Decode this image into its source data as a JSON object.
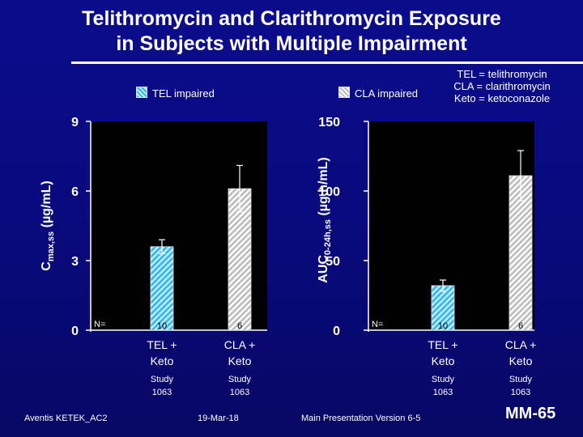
{
  "title": {
    "line1": "Telithromycin and Clarithromycin Exposure",
    "line2": "in Subjects with Multiple Impairment"
  },
  "definitions": [
    "TEL = telithromycin",
    "CLA = clarithromycin",
    "Keto = ketoconazole"
  ],
  "legend": {
    "tel": "TEL impaired",
    "cla": "CLA impaired"
  },
  "colors": {
    "background": "#0b0c8c",
    "tel_hatch": "#2fb7f0",
    "cla_hatch": "#bcbcbc"
  },
  "chart_data": [
    {
      "type": "bar",
      "ylabel_main": "C",
      "ylabel_sub": "max,ss",
      "ylabel_unit": " (µg/mL)",
      "ylim": [
        0,
        9
      ],
      "yticks": [
        0,
        3,
        6,
        9
      ],
      "n_label": "N=",
      "categories": [
        {
          "line1": "TEL +",
          "line2": "Keto",
          "study1": "Study",
          "study2": "1063"
        },
        {
          "line1": "CLA +",
          "line2": "Keto",
          "study1": "Study",
          "study2": "1063"
        }
      ],
      "series": [
        {
          "name": "TEL impaired",
          "values": [
            3.6,
            null
          ],
          "error": [
            0.3,
            null
          ],
          "n": [
            "10",
            null
          ]
        },
        {
          "name": "CLA impaired",
          "values": [
            null,
            6.1
          ],
          "error": [
            null,
            1.0
          ],
          "n": [
            null,
            "6"
          ]
        }
      ]
    },
    {
      "type": "bar",
      "ylabel_main": "AUC",
      "ylabel_sub": "0-24h,ss",
      "ylabel_unit": " (µg.h/mL)",
      "ylim": [
        0,
        150
      ],
      "yticks": [
        0,
        50,
        100,
        150
      ],
      "n_label": "N=",
      "categories": [
        {
          "line1": "TEL +",
          "line2": "Keto",
          "study1": "Study",
          "study2": "1063"
        },
        {
          "line1": "CLA +",
          "line2": "Keto",
          "study1": "Study",
          "study2": "1063"
        }
      ],
      "series": [
        {
          "name": "TEL impaired",
          "values": [
            32,
            null
          ],
          "error": [
            4,
            null
          ],
          "n": [
            "10",
            null
          ]
        },
        {
          "name": "CLA impaired",
          "values": [
            null,
            111
          ],
          "error": [
            null,
            18
          ],
          "n": [
            null,
            "6"
          ]
        }
      ]
    }
  ],
  "footer": {
    "left": "Aventis KETEK_AC2",
    "center": "19-Mar-18",
    "right": "Main Presentation Version 6-5",
    "slide": "MM-65"
  }
}
